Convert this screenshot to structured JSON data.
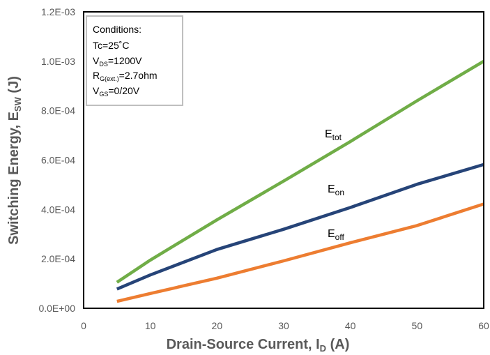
{
  "chart_data": {
    "type": "line",
    "title": "",
    "xlabel": {
      "main": "Drain-Source Current, I",
      "sub": "D",
      "unit": " (A)"
    },
    "ylabel": {
      "main": "Switching Energy, E",
      "sub": "SW",
      "unit": " (J)"
    },
    "xlim": [
      0,
      60
    ],
    "ylim": [
      0,
      0.0012
    ],
    "x_ticks": [
      0,
      10,
      20,
      30,
      40,
      50,
      60
    ],
    "x_tick_labels": [
      "0",
      "10",
      "20",
      "30",
      "40",
      "50",
      "60"
    ],
    "y_ticks": [
      0,
      0.0002,
      0.0004,
      0.0006,
      0.0008,
      0.001,
      0.0012
    ],
    "y_tick_labels": [
      "0.0E+00",
      "2.0E-04",
      "4.0E-04",
      "6.0E-04",
      "8.0E-04",
      "1.0E-03",
      "1.2E-03"
    ],
    "grid": false,
    "conditions": [
      {
        "main": "Conditions:",
        "sub": "",
        "rest": ""
      },
      {
        "main": "Tc=25˚C",
        "sub": "",
        "rest": ""
      },
      {
        "main": "V",
        "sub": "DS",
        "rest": "=1200V"
      },
      {
        "main": "R",
        "sub": "G(ext.)",
        "rest": "=2.7ohm"
      },
      {
        "main": "V",
        "sub": "GS",
        "rest": "=0/20V"
      }
    ],
    "series": [
      {
        "name": "tot",
        "label_main": "E",
        "label_sub": "tot",
        "color": "#70ad47",
        "x": [
          5,
          10,
          20,
          30,
          40,
          50,
          60
        ],
        "y": [
          0.000105,
          0.000195,
          0.000358,
          0.000515,
          0.000675,
          0.00084,
          0.001
        ]
      },
      {
        "name": "on",
        "label_main": "E",
        "label_sub": "on",
        "color": "#264478",
        "x": [
          5,
          10,
          20,
          30,
          40,
          50,
          60
        ],
        "y": [
          7.8e-05,
          0.000135,
          0.000238,
          0.00032,
          0.000408,
          0.000502,
          0.000582
        ]
      },
      {
        "name": "off",
        "label_main": "E",
        "label_sub": "off",
        "color": "#ed7d31",
        "x": [
          5,
          10,
          20,
          30,
          40,
          50,
          60
        ],
        "y": [
          2.8e-05,
          6e-05,
          0.000122,
          0.000192,
          0.000265,
          0.000335,
          0.000422
        ]
      }
    ]
  }
}
